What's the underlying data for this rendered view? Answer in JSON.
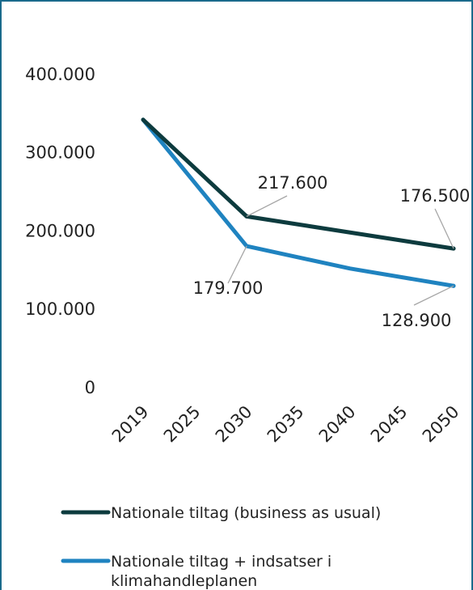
{
  "chart_data": {
    "type": "line",
    "title": "",
    "xlabel": "",
    "ylabel": "",
    "x": [
      "2019",
      "2025",
      "2030",
      "2035",
      "2040",
      "2045",
      "2050"
    ],
    "ylim": [
      0,
      400000
    ],
    "y_ticks": [
      "0",
      "100.000",
      "200.000",
      "300.000",
      "400.000"
    ],
    "grid": false,
    "legend_position": "bottom",
    "series": [
      {
        "name": "Nationale tiltag (business as usual)",
        "color": "#0d3b3e",
        "points": [
          [
            2019,
            341000
          ],
          [
            2030,
            217600
          ],
          [
            2050,
            176500
          ]
        ]
      },
      {
        "name": "Nationale tiltag + indsatser i klimahandleplanen",
        "color": "#1f83c0",
        "points": [
          [
            2019,
            341000
          ],
          [
            2030,
            179700
          ],
          [
            2040,
            151000
          ],
          [
            2050,
            128900
          ]
        ]
      }
    ],
    "data_labels": [
      {
        "series": 0,
        "x": 2030,
        "text": "217.600"
      },
      {
        "series": 0,
        "x": 2050,
        "text": "176.500"
      },
      {
        "series": 1,
        "x": 2030,
        "text": "179.700"
      },
      {
        "series": 1,
        "x": 2050,
        "text": "128.900"
      }
    ],
    "legend": {
      "items": [
        {
          "lines": [
            "Nationale tiltag (business as usual)"
          ]
        },
        {
          "lines": [
            "Nationale tiltag + indsatser i",
            "klimahandleplanen"
          ]
        }
      ]
    }
  }
}
